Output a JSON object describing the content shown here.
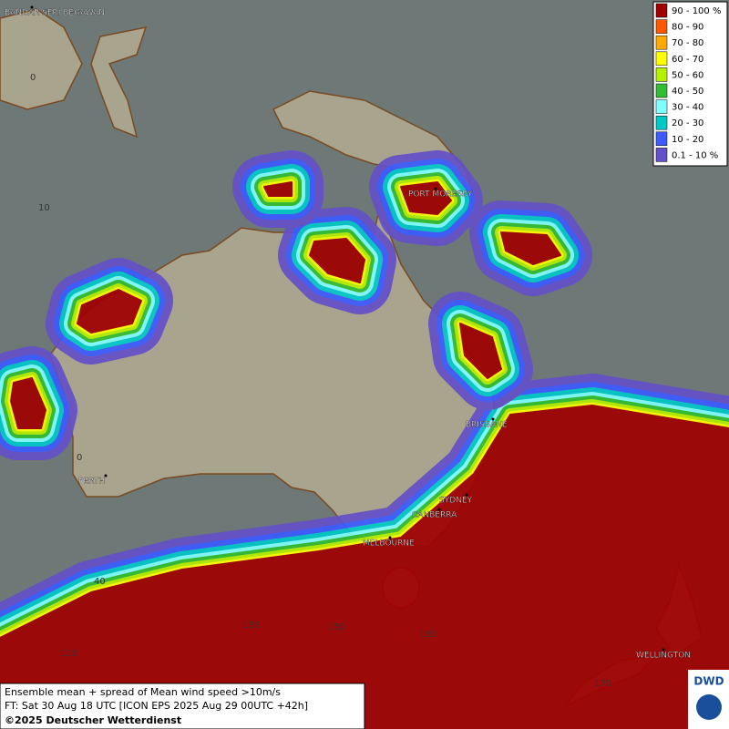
{
  "legend": {
    "items": [
      {
        "label": "90 - 100 %",
        "color": "#a00000"
      },
      {
        "label": "80 - 90",
        "color": "#ff5a00"
      },
      {
        "label": "70 - 80",
        "color": "#ffaa00"
      },
      {
        "label": "60 - 70",
        "color": "#ffff00"
      },
      {
        "label": "50 - 60",
        "color": "#b4f000"
      },
      {
        "label": "40 - 50",
        "color": "#32be32"
      },
      {
        "label": "30 - 40",
        "color": "#80ffff"
      },
      {
        "label": "20 - 30",
        "color": "#00c8c8"
      },
      {
        "label": "10 - 20",
        "color": "#3c5aff"
      },
      {
        "label": "0.1 - 10 %",
        "color": "#6450c8"
      }
    ]
  },
  "places": [
    "BANDAR SERI BEGAWAN",
    "PORT MORESBY",
    "BRISBANE",
    "SYDNEY",
    "CANBERRA",
    "MELBOURNE",
    "PERTH",
    "WELLINGTON"
  ],
  "grid_labels": [
    "0",
    "10",
    "0",
    "40",
    "110",
    "130",
    "150",
    "160",
    "170"
  ],
  "caption": {
    "line1": "Ensemble mean + spread of Mean wind speed >10m/s",
    "line2": "FT: Sat 30 Aug 18 UTC [ICON EPS 2025 Aug 29 00UTC +42h]",
    "line3": "©2025 Deutscher Wetterdienst"
  },
  "logo": "DWD"
}
